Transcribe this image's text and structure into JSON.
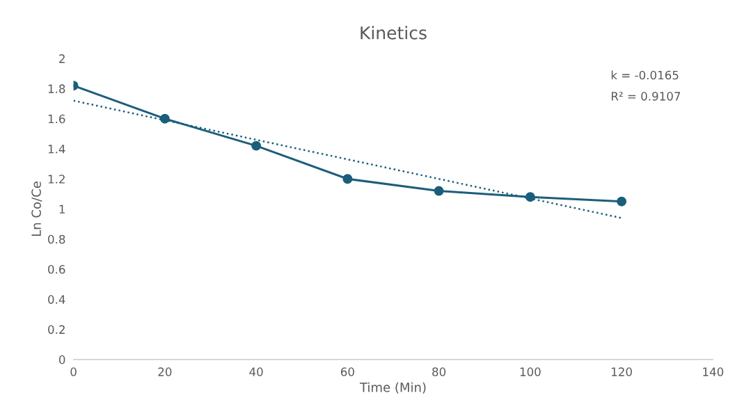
{
  "chart_data": {
    "type": "line",
    "title": "Kinetics",
    "xlabel": "Time (Min)",
    "ylabel": "Ln Co/Ce",
    "x": [
      0,
      20,
      40,
      60,
      80,
      100,
      120
    ],
    "series": [
      {
        "color": "#1b5e7b",
        "values": [
          1.82,
          1.6,
          1.42,
          1.2,
          1.12,
          1.08,
          1.05
        ],
        "marker": "circle",
        "line_style": "solid"
      },
      {
        "type": "line",
        "color": "#1b5e7b",
        "x": [
          0,
          120
        ],
        "values": [
          1.72,
          0.94
        ],
        "marker": "none",
        "line_style": "dotted"
      }
    ],
    "xlim": [
      0,
      140
    ],
    "xticks": [
      0,
      20,
      40,
      60,
      80,
      100,
      120,
      140
    ],
    "ylim": [
      0,
      2
    ],
    "yticks": [
      0,
      0.2,
      0.4,
      0.6,
      0.8,
      1,
      1.2,
      1.4,
      1.6,
      1.8,
      2
    ],
    "grid": false,
    "legend": false,
    "annotations": [
      "k = -0.0165",
      "R² = 0.9107"
    ]
  }
}
